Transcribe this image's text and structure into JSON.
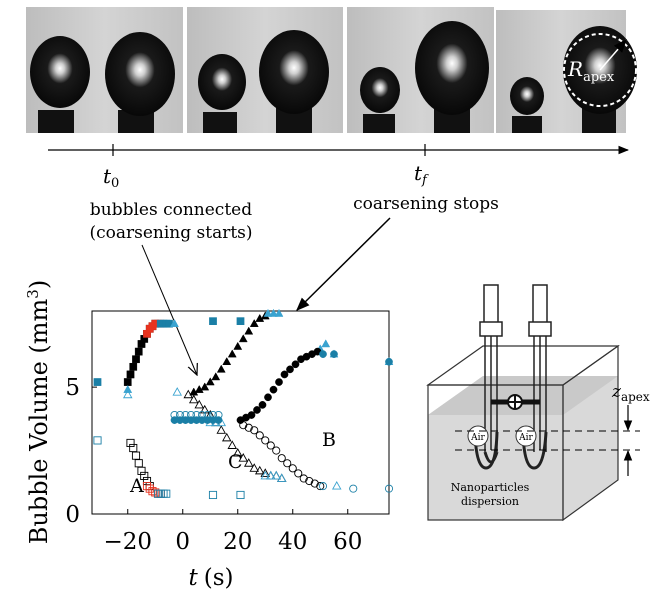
{
  "timeline": {
    "t0_label": "t",
    "t0_sub": "0",
    "tf_label": "t",
    "tf_sub": "f"
  },
  "photo_labels": {
    "r_apex_main": "R",
    "r_apex_sub": "apex"
  },
  "annotations": {
    "connected_line1": "bubbles connected",
    "connected_line2": "(coarsening starts)",
    "stops": "coarsening stops"
  },
  "plot_labels": {
    "A": "A",
    "B": "B",
    "C": "C"
  },
  "schematic": {
    "z_main": "z",
    "z_sub": "apex",
    "air1": "Air",
    "air2": "Air",
    "caption_line1": "Nanoparticles",
    "caption_line2": "dispersion"
  },
  "chart_data": {
    "type": "scatter",
    "xlabel_var": "t",
    "xlabel_unit": "(s)",
    "ylabel_text": "Bubble Volume (mm",
    "ylabel_sup": "3",
    "ylabel_close": ")",
    "xlim": [
      -33,
      75
    ],
    "ylim": [
      0,
      8
    ],
    "xticks": [
      -20,
      0,
      20,
      40,
      60
    ],
    "xtick_labels": [
      "−20",
      "0",
      "20",
      "40",
      "60"
    ],
    "yticks": [
      0,
      5
    ],
    "ytick_labels": [
      "0",
      "5"
    ],
    "colors": {
      "black": "#000000",
      "red": "#e8321e",
      "blue": "#1a7fa6",
      "cyan": "#3aa3d0"
    },
    "series": [
      {
        "marker": "square-filled",
        "color": "#000000",
        "x": [
          -20,
          -19,
          -18,
          -17,
          -16,
          -15,
          -14,
          -13,
          -12,
          -11,
          -10
        ],
        "y": [
          5.2,
          5.5,
          5.8,
          6.1,
          6.4,
          6.7,
          6.9,
          7.1,
          7.3,
          7.4,
          7.5
        ]
      },
      {
        "marker": "square-filled",
        "color": "#e8321e",
        "x": [
          -13,
          -12,
          -11,
          -10,
          -9,
          -8
        ],
        "y": [
          7.1,
          7.3,
          7.4,
          7.5,
          7.5,
          7.5
        ]
      },
      {
        "marker": "square-filled",
        "color": "#1a7fa6",
        "x": [
          -31,
          -8,
          -7,
          -6,
          -5,
          11,
          21
        ],
        "y": [
          5.2,
          7.5,
          7.5,
          7.5,
          7.5,
          7.6,
          7.6
        ]
      },
      {
        "marker": "square-open",
        "color": "#000000",
        "x": [
          -19,
          -18,
          -17,
          -16,
          -15,
          -14,
          -13,
          -12
        ],
        "y": [
          2.8,
          2.6,
          2.3,
          2.0,
          1.7,
          1.5,
          1.3,
          1.1
        ]
      },
      {
        "marker": "square-open",
        "color": "#e8321e",
        "x": [
          -13,
          -12,
          -11,
          -10,
          -9,
          -8
        ],
        "y": [
          1.1,
          1.0,
          0.9,
          0.85,
          0.8,
          0.8
        ]
      },
      {
        "marker": "square-open",
        "color": "#1a7fa6",
        "x": [
          -31,
          -9,
          -8,
          -7,
          -6,
          11,
          21
        ],
        "y": [
          2.9,
          0.8,
          0.8,
          0.8,
          0.8,
          0.75,
          0.75
        ]
      },
      {
        "marker": "triangle-filled",
        "color": "#000000",
        "x": [
          4,
          6,
          8,
          10,
          12,
          14,
          16,
          18,
          20,
          22,
          24,
          26,
          28,
          30
        ],
        "y": [
          4.8,
          4.9,
          5.0,
          5.2,
          5.4,
          5.7,
          6.0,
          6.3,
          6.6,
          6.9,
          7.2,
          7.5,
          7.7,
          7.8
        ]
      },
      {
        "marker": "triangle-filled",
        "color": "#3aa3d0",
        "x": [
          -20,
          -3,
          31,
          33,
          35,
          50,
          52,
          55,
          75
        ],
        "y": [
          4.9,
          7.5,
          7.9,
          7.9,
          7.9,
          6.5,
          6.7,
          6.3,
          6.0
        ]
      },
      {
        "marker": "triangle-open",
        "color": "#000000",
        "x": [
          2,
          4,
          6,
          8,
          10,
          12,
          14,
          16,
          18,
          20,
          22,
          24,
          26,
          28,
          30,
          32,
          34,
          36
        ],
        "y": [
          4.7,
          4.5,
          4.3,
          4.1,
          3.9,
          3.6,
          3.3,
          3.0,
          2.7,
          2.4,
          2.2,
          2.0,
          1.8,
          1.7,
          1.6,
          1.5,
          1.5,
          1.4
        ]
      },
      {
        "marker": "triangle-open",
        "color": "#3aa3d0",
        "x": [
          -20,
          -2,
          10,
          12,
          14,
          30,
          32,
          34,
          36,
          56
        ],
        "y": [
          4.7,
          4.8,
          3.6,
          3.6,
          3.6,
          1.5,
          1.5,
          1.5,
          1.4,
          1.1
        ]
      },
      {
        "marker": "circle-filled",
        "color": "#000000",
        "x": [
          21,
          23,
          25,
          27,
          29,
          31,
          33,
          35,
          37,
          39,
          41,
          43,
          45,
          47,
          49
        ],
        "y": [
          3.7,
          3.8,
          3.9,
          4.1,
          4.3,
          4.6,
          4.9,
          5.2,
          5.5,
          5.7,
          5.9,
          6.1,
          6.2,
          6.3,
          6.4
        ]
      },
      {
        "marker": "circle-filled",
        "color": "#1a7fa6",
        "x": [
          -3,
          -1,
          1,
          3,
          5,
          7,
          9,
          11,
          13,
          51,
          55,
          75
        ],
        "y": [
          3.7,
          3.7,
          3.7,
          3.7,
          3.7,
          3.7,
          3.7,
          3.7,
          3.7,
          6.3,
          6.3,
          6.0
        ]
      },
      {
        "marker": "circle-open",
        "color": "#000000",
        "x": [
          22,
          24,
          26,
          28,
          30,
          32,
          34,
          36,
          38,
          40,
          42,
          44,
          46,
          48,
          50
        ],
        "y": [
          3.5,
          3.4,
          3.3,
          3.1,
          2.9,
          2.7,
          2.5,
          2.2,
          2.0,
          1.8,
          1.6,
          1.4,
          1.3,
          1.2,
          1.1
        ]
      },
      {
        "marker": "circle-open",
        "color": "#1a7fa6",
        "x": [
          -3,
          -1,
          1,
          3,
          5,
          7,
          9,
          11,
          13,
          51,
          62,
          75
        ],
        "y": [
          3.9,
          3.9,
          3.9,
          3.9,
          3.9,
          3.9,
          3.9,
          3.9,
          3.9,
          1.1,
          1.0,
          1.0
        ]
      }
    ]
  }
}
